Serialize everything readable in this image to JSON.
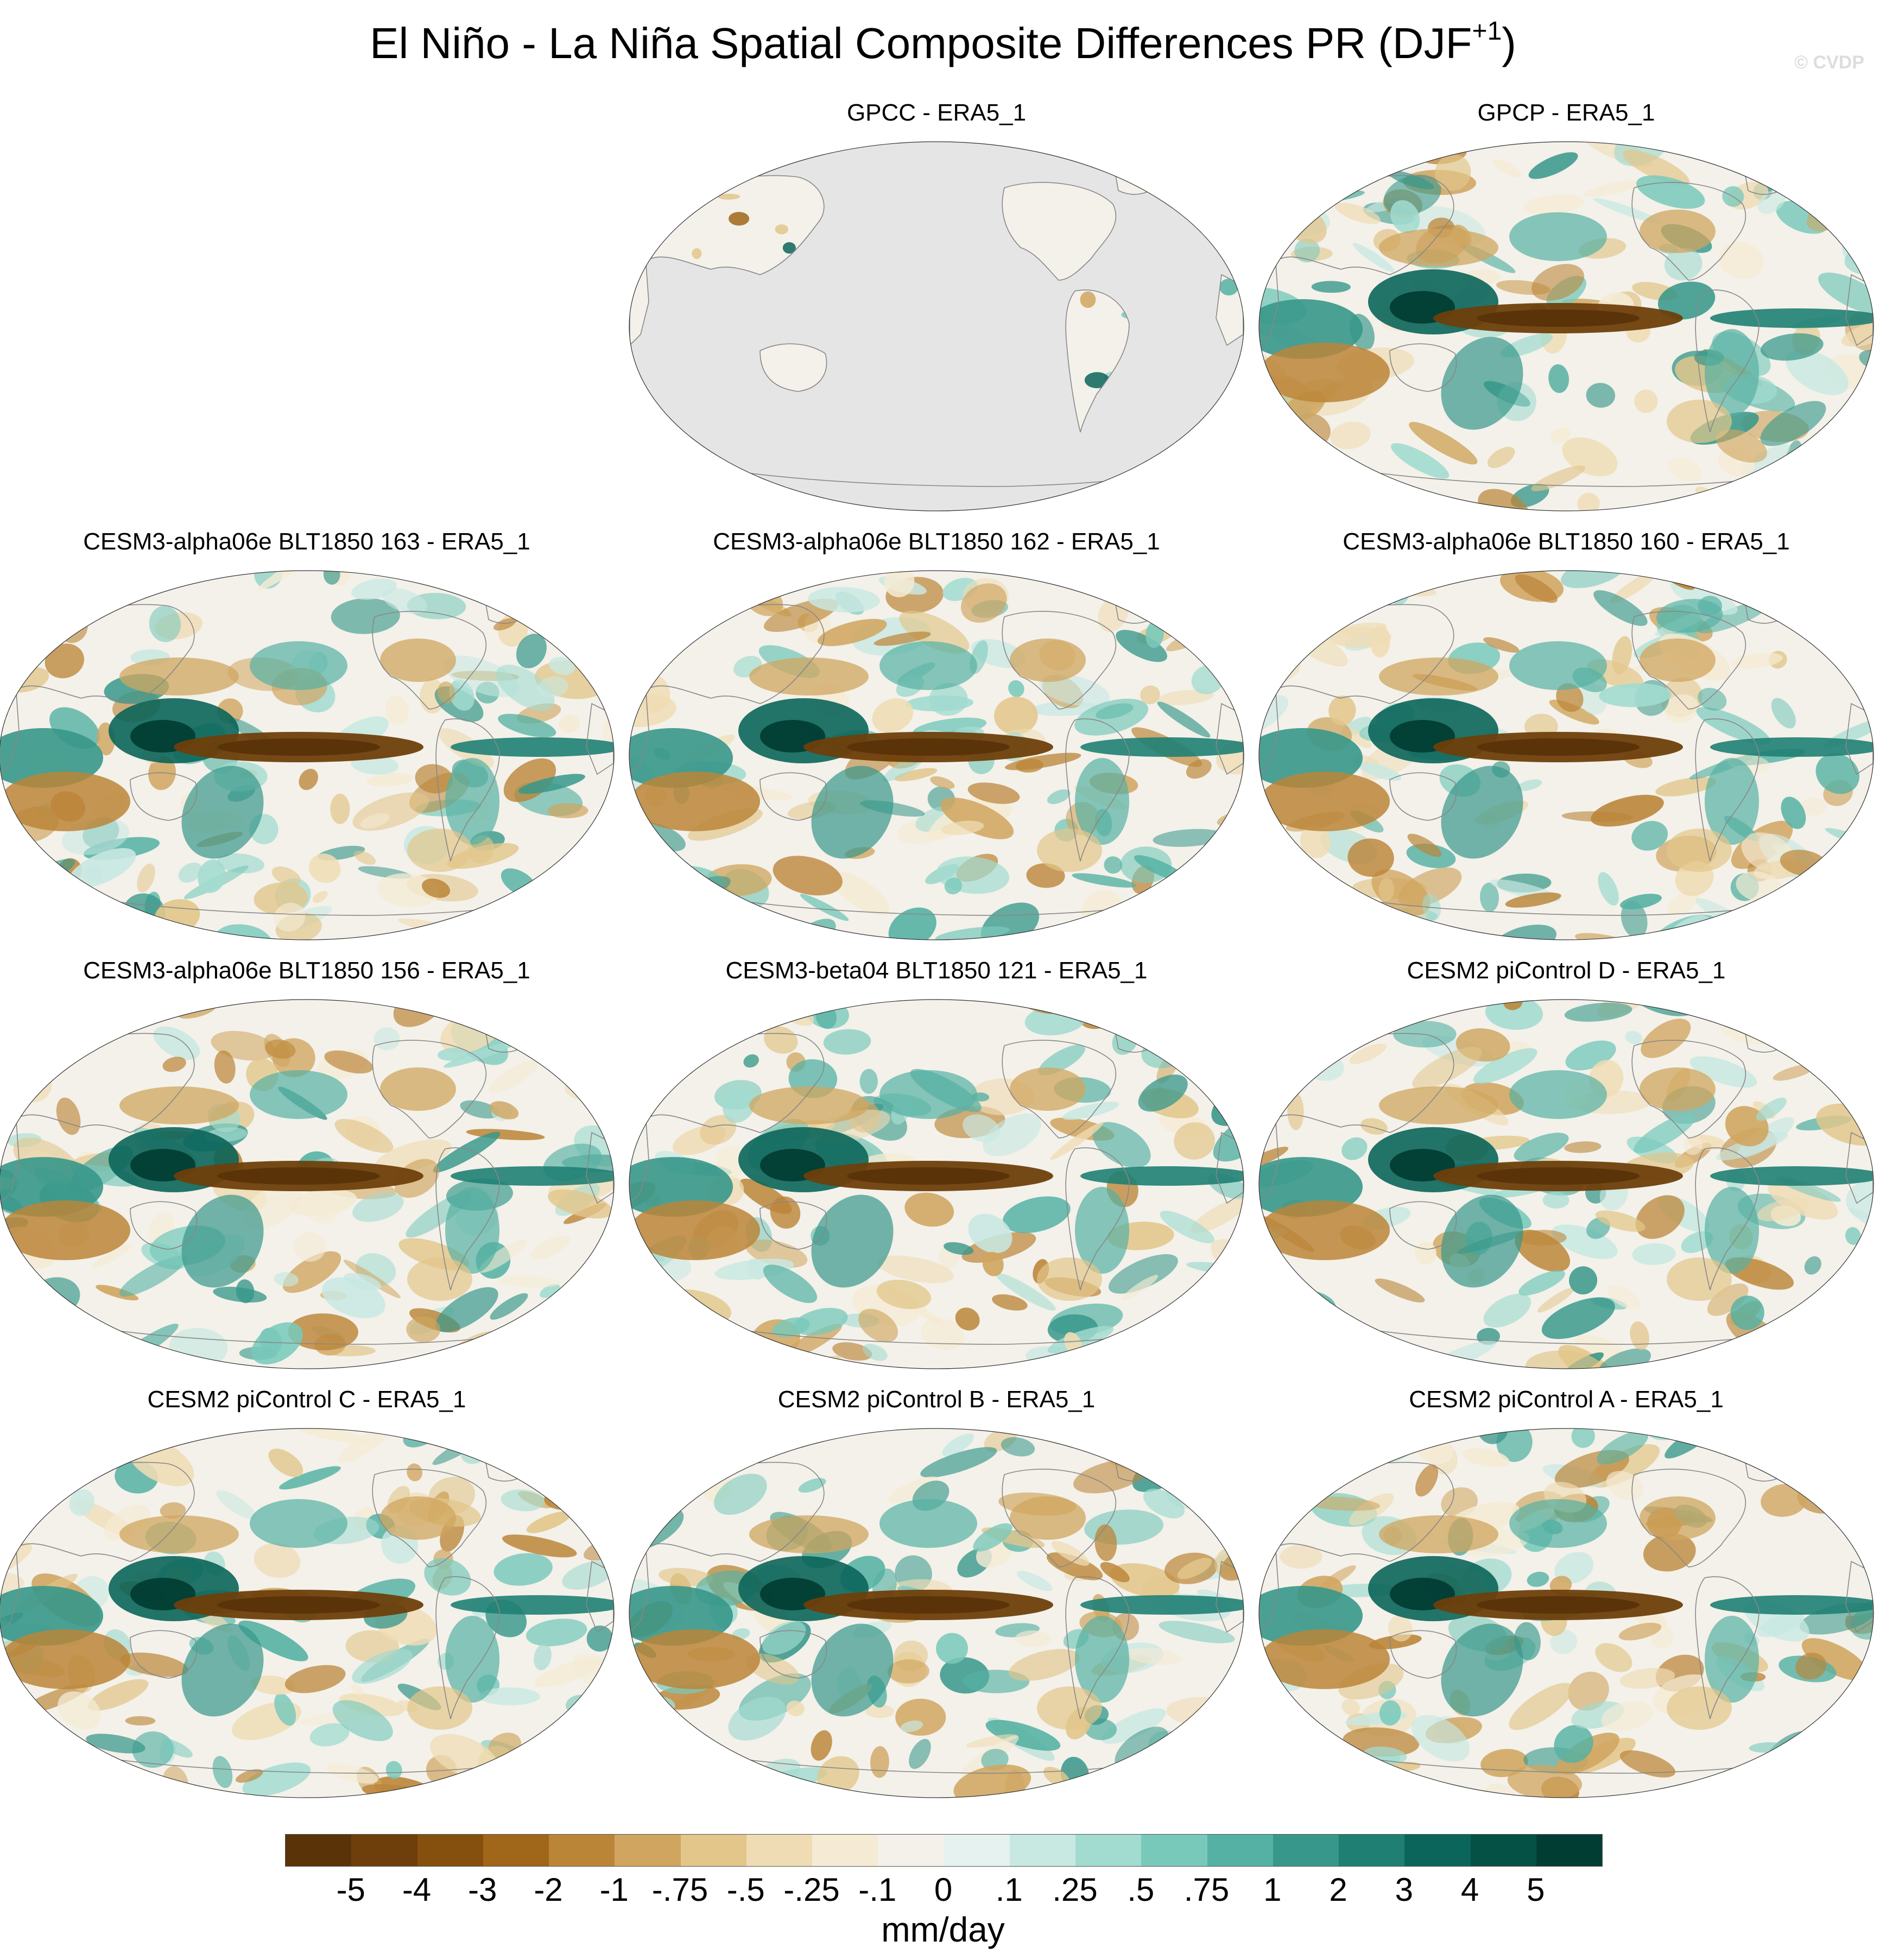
{
  "title": {
    "main": "El Niño - La Niña Spatial Composite Differences PR (DJF",
    "superscript": "+1",
    "close": ")"
  },
  "watermark": "© CVDP",
  "panels": [
    {
      "id": "gpcc",
      "title": "GPCC - ERA5_1",
      "land_only": true
    },
    {
      "id": "gpcp",
      "title": "GPCP - ERA5_1",
      "land_only": false
    },
    {
      "id": "a163",
      "title": "CESM3-alpha06e BLT1850 163 - ERA5_1",
      "land_only": false
    },
    {
      "id": "a162",
      "title": "CESM3-alpha06e BLT1850 162 - ERA5_1",
      "land_only": false
    },
    {
      "id": "a160",
      "title": "CESM3-alpha06e BLT1850 160 - ERA5_1",
      "land_only": false
    },
    {
      "id": "a156",
      "title": "CESM3-alpha06e BLT1850 156 - ERA5_1",
      "land_only": false
    },
    {
      "id": "b121",
      "title": "CESM3-beta04 BLT1850 121 - ERA5_1",
      "land_only": false
    },
    {
      "id": "pcD",
      "title": "CESM2 piControl D - ERA5_1",
      "land_only": false
    },
    {
      "id": "pcC",
      "title": "CESM2 piControl C - ERA5_1",
      "land_only": false
    },
    {
      "id": "pcB",
      "title": "CESM2 piControl B - ERA5_1",
      "land_only": false
    },
    {
      "id": "pcA",
      "title": "CESM2 piControl A - ERA5_1",
      "land_only": false
    }
  ],
  "colorbar": {
    "colors": [
      "#5a3308",
      "#6e3f0b",
      "#85500e",
      "#a06619",
      "#bb8538",
      "#d0a55f",
      "#e2c68a",
      "#efdcb4",
      "#f5ebd4",
      "#f3f1ea",
      "#e6f2ef",
      "#c8e8e2",
      "#a2dbd0",
      "#79c9bb",
      "#55b1a3",
      "#37978a",
      "#1f7f73",
      "#0b655a",
      "#055146",
      "#023d34"
    ],
    "labels": [
      "-5",
      "-4",
      "-3",
      "-2",
      "-1",
      "-.75",
      "-.5",
      "-.25",
      "-.1",
      "0",
      ".1",
      ".25",
      ".5",
      ".75",
      "1",
      "2",
      "3",
      "4",
      "5"
    ],
    "units": "mm/day"
  },
  "palette": {
    "land_gray": "#e5e5e5",
    "coast": "#888888",
    "neutral": "#f3f1ea"
  }
}
